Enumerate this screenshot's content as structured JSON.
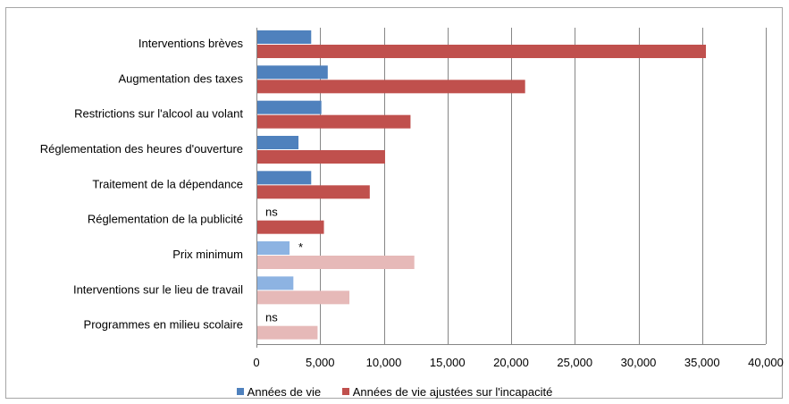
{
  "chart_data": {
    "type": "bar",
    "orientation": "horizontal",
    "categories": [
      "Interventions brèves",
      "Augmentation des taxes",
      "Restrictions sur l'alcool au volant",
      "Réglementation des heures d'ouverture",
      "Traitement de la dépendance",
      "Réglementation de la publicité",
      "Prix minimum",
      "Interventions sur le lieu de travail",
      "Programmes en milieu scolaire"
    ],
    "series": [
      {
        "name": "Années de vie",
        "color": "#4f81bd",
        "light_color": "#8db3e2",
        "values": [
          4300,
          5600,
          5100,
          3300,
          4300,
          null,
          2600,
          2900,
          null
        ]
      },
      {
        "name": "Années de vie ajustées sur l'incapacité",
        "color": "#c0504d",
        "light_color": "#e6b9b8",
        "values": [
          35300,
          21100,
          12100,
          10100,
          8900,
          5300,
          12400,
          7300,
          4800
        ]
      }
    ],
    "light_categories": [
      6,
      7,
      8
    ],
    "annotations": [
      {
        "category_index": 5,
        "series_index": 0,
        "text": "ns"
      },
      {
        "category_index": 6,
        "series_index": 0,
        "text": "*"
      },
      {
        "category_index": 8,
        "series_index": 0,
        "text": "ns"
      }
    ],
    "xlim": [
      0,
      40000
    ],
    "xticks": [
      0,
      5000,
      10000,
      15000,
      20000,
      25000,
      30000,
      35000,
      40000
    ],
    "xtick_labels": [
      "0",
      "5,000",
      "10,000",
      "15,000",
      "20,000",
      "25,000",
      "30,000",
      "35,000",
      "40,000"
    ],
    "grid": "vertical",
    "legend_position": "bottom",
    "title": "",
    "xlabel": "",
    "ylabel": ""
  },
  "legend": {
    "series0_label": "Années de vie",
    "series1_label": "Années de vie ajustées sur l'incapacité"
  }
}
